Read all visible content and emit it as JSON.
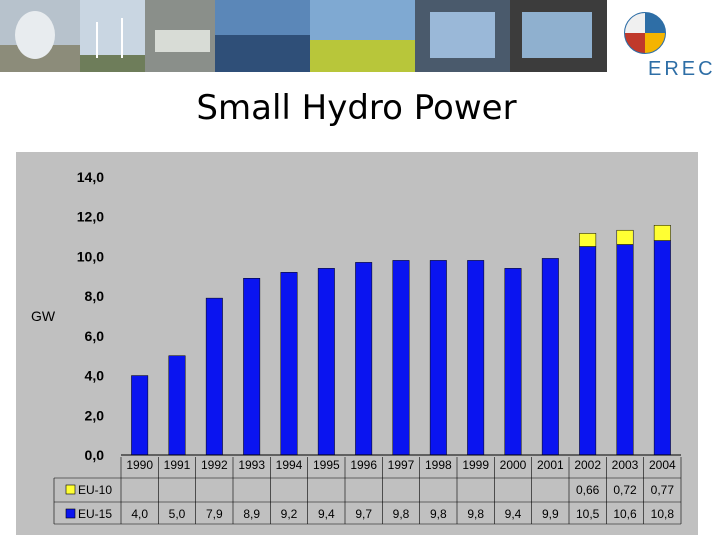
{
  "slide": {
    "title": "Small Hydro Power",
    "logo_text": "EREC"
  },
  "colors": {
    "eu15": "#0a14f0",
    "eu10": "#ffff33",
    "plot_bg": "#c0c0c0",
    "title_blue": "#2e6ea6"
  },
  "chart_data": {
    "type": "bar",
    "stacked": true,
    "ylabel": "GW",
    "ylim": [
      0,
      14
    ],
    "yticks": [
      "0,0",
      "2,0",
      "4,0",
      "6,0",
      "8,0",
      "10,0",
      "12,0",
      "14,0"
    ],
    "categories": [
      "1990",
      "1991",
      "1992",
      "1993",
      "1994",
      "1995",
      "1996",
      "1997",
      "1998",
      "1999",
      "2000",
      "2001",
      "2002",
      "2003",
      "2004"
    ],
    "series": [
      {
        "name": "EU-15",
        "values": [
          4.0,
          5.0,
          7.9,
          8.9,
          9.2,
          9.4,
          9.7,
          9.8,
          9.8,
          9.8,
          9.4,
          9.9,
          10.5,
          10.6,
          10.8
        ],
        "labels": [
          "4,0",
          "5,0",
          "7,9",
          "8,9",
          "9,2",
          "9,4",
          "9,7",
          "9,8",
          "9,8",
          "9,8",
          "9,4",
          "9,9",
          "10,5",
          "10,6",
          "10,8"
        ]
      },
      {
        "name": "EU-10",
        "values": [
          null,
          null,
          null,
          null,
          null,
          null,
          null,
          null,
          null,
          null,
          null,
          null,
          0.66,
          0.72,
          0.77
        ],
        "labels": [
          "",
          "",
          "",
          "",
          "",
          "",
          "",
          "",
          "",
          "",
          "",
          "",
          "0,66",
          "0,72",
          "0,77"
        ]
      }
    ],
    "legend": "data table below plot"
  }
}
